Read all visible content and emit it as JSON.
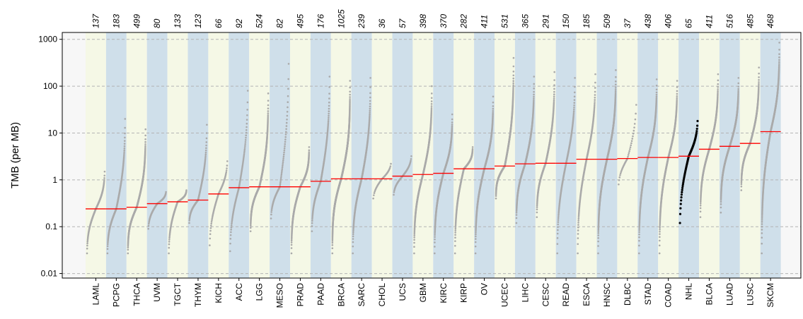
{
  "chart_data": {
    "type": "scatter",
    "title": "",
    "xlabel": "",
    "ylabel": "TMB (per MB)",
    "yscale": "log",
    "ylim": [
      0.008,
      1400
    ],
    "yticks": [
      0.01,
      0.1,
      1,
      10,
      100,
      1000
    ],
    "ytick_labels": [
      "0.01",
      "0.1",
      "1",
      "10",
      "100",
      "1000"
    ],
    "grid": "horizontal dashed at major ticks",
    "band_colors": [
      "#f5f8e6",
      "#cfdfea"
    ],
    "point_color": "#aaaaaa",
    "highlight_color": "#000000",
    "median_color": "#ff0000",
    "highlight_category": "NHL",
    "categories": [
      "LAML",
      "PCPG",
      "THCA",
      "UVM",
      "TGCT",
      "THYM",
      "KICH",
      "ACC",
      "LGG",
      "MESO",
      "PRAD",
      "PAAD",
      "BRCA",
      "SARC",
      "CHOL",
      "UCS",
      "GBM",
      "KIRC",
      "KIRP",
      "OV",
      "UCEC",
      "LIHC",
      "CESC",
      "READ",
      "ESCA",
      "HNSC",
      "DLBC",
      "STAD",
      "COAD",
      "NHL",
      "BLCA",
      "LUAD",
      "LUSC",
      "SKCM"
    ],
    "sample_counts": [
      "137",
      "183",
      "499",
      "80",
      "133",
      "123",
      "66",
      "92",
      "524",
      "82",
      "495",
      "176",
      "1025",
      "239",
      "36",
      "57",
      "398",
      "370",
      "282",
      "411",
      "531",
      "365",
      "291",
      "150",
      "185",
      "509",
      "37",
      "438",
      "406",
      "65",
      "411",
      "516",
      "485",
      "468"
    ],
    "medians": [
      0.24,
      0.24,
      0.26,
      0.31,
      0.34,
      0.37,
      0.5,
      0.68,
      0.71,
      0.71,
      0.71,
      0.93,
      1.05,
      1.05,
      1.05,
      1.2,
      1.3,
      1.38,
      1.72,
      1.72,
      1.97,
      2.2,
      2.26,
      2.26,
      2.75,
      2.75,
      2.85,
      3.0,
      3.0,
      3.2,
      4.5,
      5.2,
      6.0,
      10.7
    ],
    "min_values": [
      0.027,
      0.027,
      0.027,
      0.09,
      0.027,
      0.12,
      0.04,
      0.03,
      0.08,
      0.15,
      0.027,
      0.08,
      0.027,
      0.027,
      0.4,
      0.48,
      0.027,
      0.027,
      0.027,
      0.027,
      0.4,
      0.12,
      0.16,
      0.027,
      0.027,
      0.027,
      0.8,
      0.027,
      0.027,
      0.12,
      0.16,
      0.2,
      0.6,
      0.027
    ],
    "max_values": [
      1.5,
      20,
      12,
      0.55,
      0.6,
      15,
      2.5,
      80,
      70,
      300,
      5.0,
      160,
      130,
      150,
      2.2,
      3.2,
      100,
      25,
      5.0,
      60,
      400,
      160,
      200,
      150,
      180,
      220,
      40,
      140,
      130,
      18,
      180,
      150,
      250,
      850
    ]
  }
}
